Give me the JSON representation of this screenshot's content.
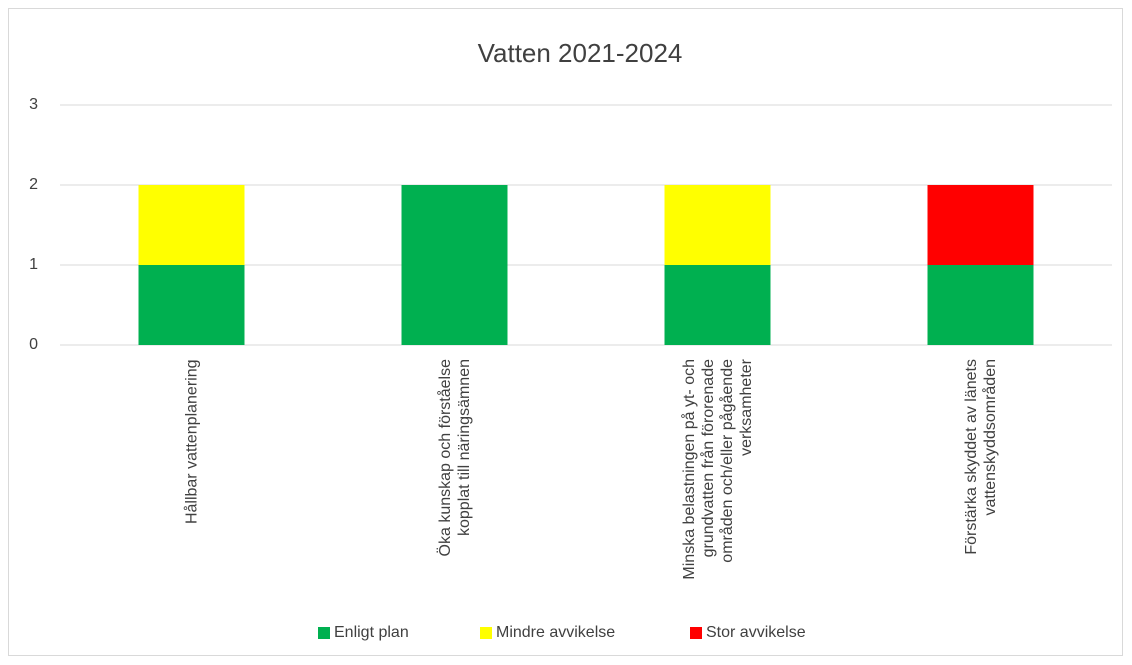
{
  "chart_data": {
    "type": "stacked_bar",
    "title": "Vatten 2021-2024",
    "categories": [
      "Hållbar vattenplanering",
      "Öka kunskap och förståelse kopplat till näringsämnen",
      "Minska belastningen på yt- och grundvatten från förorenade områden och/eller pågående verksamheter",
      "Förstärka skyddet av länets vattenskyddsområden"
    ],
    "series": [
      {
        "name": "Enligt plan",
        "color": "#00b050",
        "values": [
          1,
          2,
          1,
          1
        ]
      },
      {
        "name": "Mindre avvikelse",
        "color": "#ffff00",
        "values": [
          1,
          0,
          1,
          0
        ]
      },
      {
        "name": "Stor avvikelse",
        "color": "#ff0000",
        "values": [
          0,
          0,
          0,
          1
        ]
      }
    ],
    "ylim": [
      0,
      3
    ],
    "yticks": [
      0,
      1,
      2,
      3
    ],
    "grid": true,
    "legend": "bottom"
  }
}
